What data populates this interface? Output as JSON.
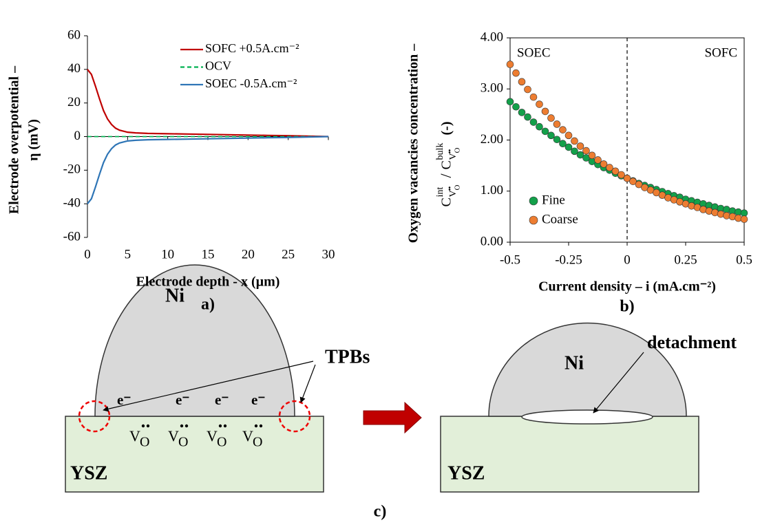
{
  "chart_data": [
    {
      "type": "line",
      "panel": "a)",
      "xlabel": "Electrode depth - x (µm)",
      "ylabel": [
        "Electrode overpotential –",
        "η (mV)"
      ],
      "x": [
        0,
        0.5,
        1,
        1.5,
        2,
        2.5,
        3,
        3.5,
        4,
        5,
        6,
        7.5,
        10,
        12.5,
        15,
        17.5,
        20,
        22.5,
        25,
        27.5,
        30
      ],
      "series": [
        {
          "name": "SOFC +0.5A.cm⁻²",
          "color": "#c00000",
          "dash": false,
          "values": [
            40,
            37,
            30,
            22.5,
            15.5,
            10.5,
            7.2,
            5,
            3.8,
            2.6,
            2.2,
            1.9,
            1.7,
            1.5,
            1.3,
            1.1,
            0.9,
            0.7,
            0.5,
            0.25,
            0
          ]
        },
        {
          "name": "OCV",
          "color": "#00b050",
          "dash": true,
          "values": [
            0,
            0,
            0,
            0,
            0,
            0,
            0,
            0,
            0,
            0,
            0,
            0,
            0,
            0,
            0,
            0,
            0,
            0,
            0,
            0,
            0
          ]
        },
        {
          "name": "SOEC -0.5A.cm⁻²",
          "color": "#2e75b6",
          "dash": false,
          "values": [
            -40,
            -37,
            -30,
            -22.5,
            -15.5,
            -10.5,
            -7.2,
            -5,
            -3.8,
            -2.6,
            -2.2,
            -1.9,
            -1.7,
            -1.5,
            -1.3,
            -1.1,
            -0.9,
            -0.7,
            -0.5,
            -0.25,
            0
          ]
        }
      ],
      "xlim": [
        0,
        30
      ],
      "ylim": [
        -60,
        60
      ],
      "xticks": [
        0,
        5,
        10,
        15,
        20,
        25,
        30
      ],
      "yticks": [
        -60,
        -40,
        -20,
        0,
        20,
        40,
        60
      ],
      "legend": "upper right"
    },
    {
      "type": "scatter",
      "panel": "b)",
      "xlabel": "Current density – i (mA.cm⁻²)",
      "ylabel": [
        "Oxygen vacancies concentration –"
      ],
      "ylabel_formula": {
        "c1": "C",
        "sup1": "int",
        "v1": "V",
        "o1": "O",
        "slash": "/",
        "c2": "C",
        "sup2": "bulk",
        "v2": "V",
        "o2": "O",
        "unit": "(-)"
      },
      "x": [
        -0.5,
        -0.475,
        -0.45,
        -0.425,
        -0.4,
        -0.375,
        -0.35,
        -0.325,
        -0.3,
        -0.275,
        -0.25,
        -0.225,
        -0.2,
        -0.175,
        -0.15,
        -0.125,
        -0.1,
        -0.075,
        -0.05,
        -0.025,
        0,
        0.025,
        0.05,
        0.075,
        0.1,
        0.125,
        0.15,
        0.175,
        0.2,
        0.225,
        0.25,
        0.275,
        0.3,
        0.325,
        0.35,
        0.375,
        0.4,
        0.425,
        0.45,
        0.475,
        0.5
      ],
      "series": [
        {
          "name": "Fine",
          "color": "#13a04a",
          "values": [
            2.75,
            2.65,
            2.54,
            2.45,
            2.35,
            2.26,
            2.17,
            2.09,
            2.01,
            1.93,
            1.86,
            1.78,
            1.71,
            1.65,
            1.58,
            1.52,
            1.46,
            1.41,
            1.35,
            1.3,
            1.25,
            1.2,
            1.15,
            1.11,
            1.07,
            1.03,
            0.99,
            0.95,
            0.91,
            0.88,
            0.84,
            0.81,
            0.78,
            0.75,
            0.72,
            0.69,
            0.66,
            0.64,
            0.61,
            0.59,
            0.57
          ]
        },
        {
          "name": "Coarse",
          "color": "#ed7d31",
          "values": [
            3.48,
            3.31,
            3.14,
            2.99,
            2.84,
            2.7,
            2.56,
            2.43,
            2.31,
            2.2,
            2.09,
            1.98,
            1.88,
            1.79,
            1.7,
            1.61,
            1.53,
            1.46,
            1.39,
            1.32,
            1.25,
            1.19,
            1.13,
            1.07,
            1.02,
            0.97,
            0.92,
            0.87,
            0.83,
            0.79,
            0.75,
            0.71,
            0.68,
            0.64,
            0.61,
            0.58,
            0.55,
            0.52,
            0.5,
            0.47,
            0.45
          ]
        }
      ],
      "xlim": [
        -0.5,
        0.5
      ],
      "ylim": [
        0,
        4
      ],
      "xticks": [
        -0.5,
        -0.25,
        0,
        0.25,
        0.5
      ],
      "yticks": [
        {
          "value": 0,
          "label": "0.00"
        },
        {
          "value": 1,
          "label": "1.00"
        },
        {
          "value": 2,
          "label": "2.00"
        },
        {
          "value": 3,
          "label": "3.00"
        },
        {
          "value": 4,
          "label": "4.00"
        }
      ],
      "vline": 0,
      "annotations": [
        "SOEC",
        "SOFC"
      ],
      "legend": "lower left"
    }
  ],
  "diagram": {
    "label": "c)",
    "left": {
      "ni": "Ni",
      "tpbs": "TPBs",
      "ysz": "YSZ",
      "electrons": [
        "e⁻",
        "e⁻",
        "e⁻",
        "e⁻"
      ],
      "vacancies": [
        [
          "V",
          "O"
        ],
        [
          "V",
          "O"
        ],
        [
          "V",
          "O"
        ],
        [
          "V",
          "O"
        ]
      ]
    },
    "right": {
      "ni": "Ni",
      "detachment": "detachment",
      "ysz": "YSZ"
    }
  }
}
